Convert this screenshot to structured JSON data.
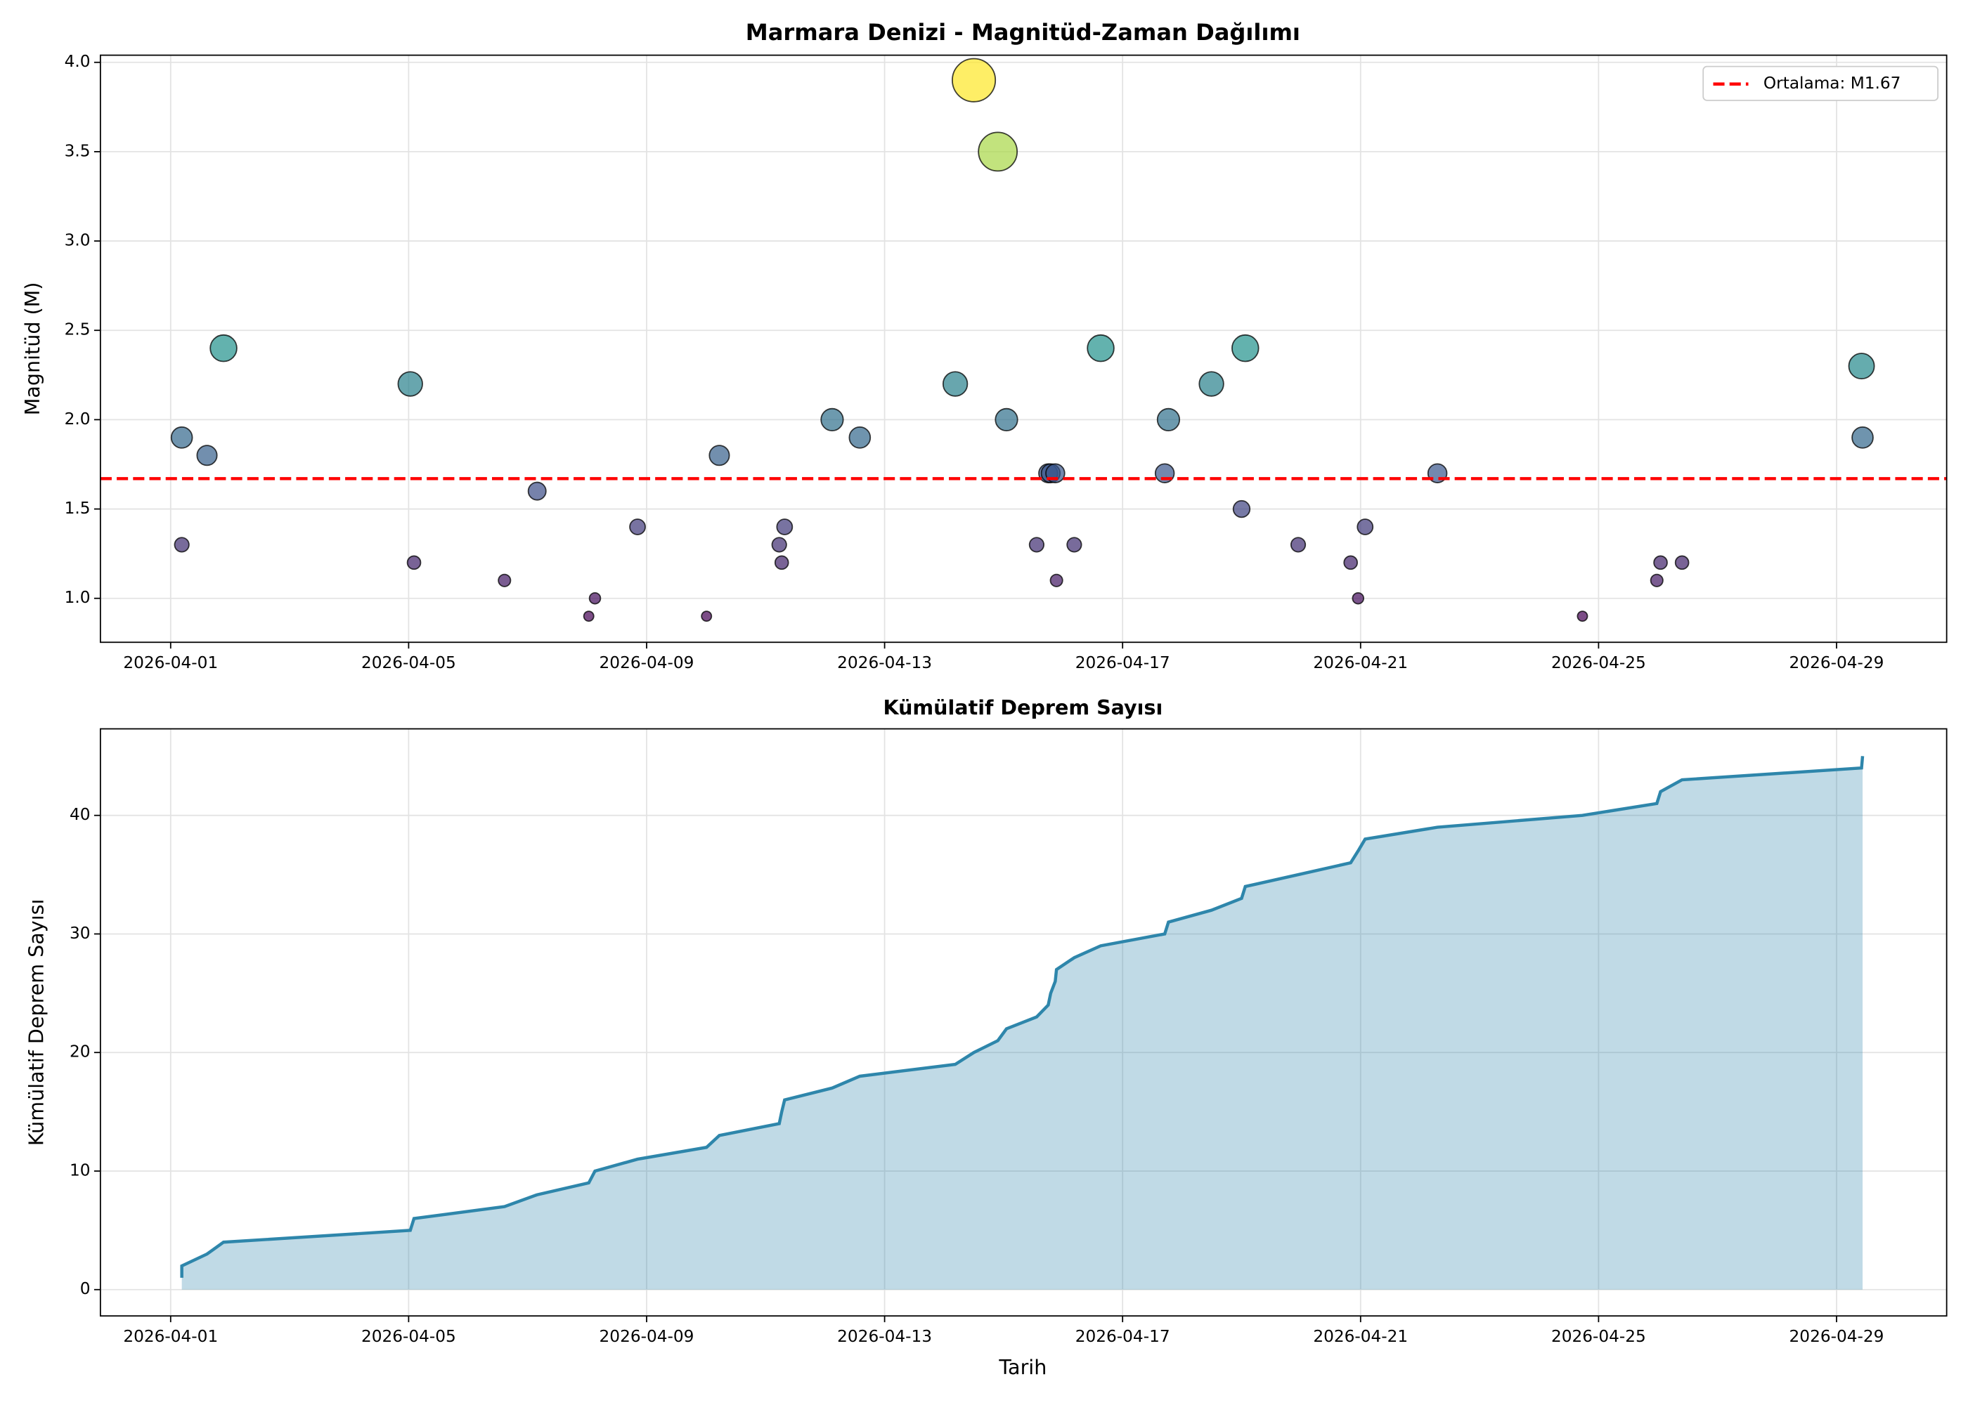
{
  "chart_data": [
    {
      "type": "scatter",
      "title": "Marmara Denizi - Magnitüd-Zaman Dağılımı",
      "y_label": "Magnitüd (M)",
      "x": [
        "2026-04-01 04:30",
        "2026-04-01 04:30",
        "2026-04-01 14:40",
        "2026-04-01 21:20",
        "2026-04-05 00:40",
        "2026-04-05 02:10",
        "2026-04-06 14:40",
        "2026-04-07 03:50",
        "2026-04-08 00:40",
        "2026-04-08 03:10",
        "2026-04-08 20:20",
        "2026-04-10 00:10",
        "2026-04-10 05:20",
        "2026-04-11 05:30",
        "2026-04-11 06:30",
        "2026-04-11 07:40",
        "2026-04-12 02:50",
        "2026-04-12 14:00",
        "2026-04-14 04:30",
        "2026-04-14 12:00",
        "2026-04-14 21:40",
        "2026-04-15 01:10",
        "2026-04-15 13:20",
        "2026-04-15 18:00",
        "2026-04-15 19:00",
        "2026-04-15 20:50",
        "2026-04-15 21:20",
        "2026-04-16 04:30",
        "2026-04-16 15:10",
        "2026-04-17 17:00",
        "2026-04-17 18:30",
        "2026-04-18 11:50",
        "2026-04-19 00:00",
        "2026-04-19 01:30",
        "2026-04-19 22:50",
        "2026-04-20 20:00",
        "2026-04-20 23:00",
        "2026-04-21 01:50",
        "2026-04-22 07:00",
        "2026-04-24 17:30",
        "2026-04-25 23:30",
        "2026-04-26 01:00",
        "2026-04-26 09:40",
        "2026-04-29 10:05",
        "2026-04-29 10:30"
      ],
      "values": [
        1.9,
        1.3,
        1.8,
        2.4,
        2.2,
        1.2,
        1.1,
        1.6,
        0.9,
        1.0,
        1.4,
        0.9,
        1.8,
        1.3,
        1.2,
        1.4,
        2.0,
        1.9,
        2.2,
        3.9,
        3.5,
        2.0,
        1.3,
        1.7,
        1.7,
        1.7,
        1.1,
        1.3,
        2.4,
        1.7,
        2.0,
        2.2,
        1.5,
        2.4,
        1.3,
        1.2,
        1.0,
        1.4,
        1.7,
        0.9,
        1.1,
        1.2,
        1.2,
        2.3,
        1.9
      ],
      "colormap": "viridis",
      "reference_line": {
        "value": 1.67,
        "label": "Ortalama: M1.67",
        "color": "#ff0000"
      },
      "legend": "upper right",
      "xlim": [
        "2026-03-30 19:40",
        "2026-04-30 20:25"
      ],
      "xticks": [
        "2026-04-01",
        "2026-04-05",
        "2026-04-09",
        "2026-04-13",
        "2026-04-17",
        "2026-04-21",
        "2026-04-25",
        "2026-04-29"
      ],
      "ylim": [
        0.754,
        4.04
      ],
      "yticks": [
        {
          "value": 1.0,
          "label": "1.0"
        },
        {
          "value": 1.5,
          "label": "1.5"
        },
        {
          "value": 2.0,
          "label": "2.0"
        },
        {
          "value": 2.5,
          "label": "2.5"
        },
        {
          "value": 3.0,
          "label": "3.0"
        },
        {
          "value": 3.5,
          "label": "3.5"
        },
        {
          "value": 4.0,
          "label": "4.0"
        }
      ],
      "grid": true
    },
    {
      "type": "area",
      "title": "Kümülatif Deprem Sayısı",
      "x_label": "Tarih",
      "y_label": "Kümülatif Deprem Sayısı",
      "x": [
        "2026-04-01 04:30",
        "2026-04-01 04:30",
        "2026-04-01 14:40",
        "2026-04-01 21:20",
        "2026-04-05 00:40",
        "2026-04-05 02:10",
        "2026-04-06 14:40",
        "2026-04-07 03:50",
        "2026-04-08 00:40",
        "2026-04-08 03:10",
        "2026-04-08 20:20",
        "2026-04-10 00:10",
        "2026-04-10 05:20",
        "2026-04-11 05:30",
        "2026-04-11 06:30",
        "2026-04-11 07:40",
        "2026-04-12 02:50",
        "2026-04-12 14:00",
        "2026-04-14 04:30",
        "2026-04-14 12:00",
        "2026-04-14 21:40",
        "2026-04-15 01:10",
        "2026-04-15 13:20",
        "2026-04-15 18:00",
        "2026-04-15 19:00",
        "2026-04-15 20:50",
        "2026-04-15 21:20",
        "2026-04-16 04:30",
        "2026-04-16 15:10",
        "2026-04-17 17:00",
        "2026-04-17 18:30",
        "2026-04-18 11:50",
        "2026-04-19 00:00",
        "2026-04-19 01:30",
        "2026-04-19 22:50",
        "2026-04-20 20:00",
        "2026-04-20 23:00",
        "2026-04-21 01:50",
        "2026-04-22 07:00",
        "2026-04-24 17:30",
        "2026-04-25 23:30",
        "2026-04-26 01:00",
        "2026-04-26 09:40",
        "2026-04-29 10:05",
        "2026-04-29 10:30"
      ],
      "values": [
        1,
        2,
        3,
        4,
        5,
        6,
        7,
        8,
        9,
        10,
        11,
        12,
        13,
        14,
        15,
        16,
        17,
        18,
        19,
        20,
        21,
        22,
        23,
        24,
        25,
        26,
        27,
        28,
        29,
        30,
        31,
        32,
        33,
        34,
        35,
        36,
        37,
        38,
        39,
        40,
        41,
        42,
        43,
        44,
        45
      ],
      "color": "#2e86ab",
      "xlim": [
        "2026-03-30 19:40",
        "2026-04-30 20:25"
      ],
      "xticks": [
        "2026-04-01",
        "2026-04-05",
        "2026-04-09",
        "2026-04-13",
        "2026-04-17",
        "2026-04-21",
        "2026-04-25",
        "2026-04-29"
      ],
      "ylim": [
        -2.22,
        47.3
      ],
      "yticks": [
        0,
        10,
        20,
        30,
        40
      ],
      "grid": true
    }
  ]
}
